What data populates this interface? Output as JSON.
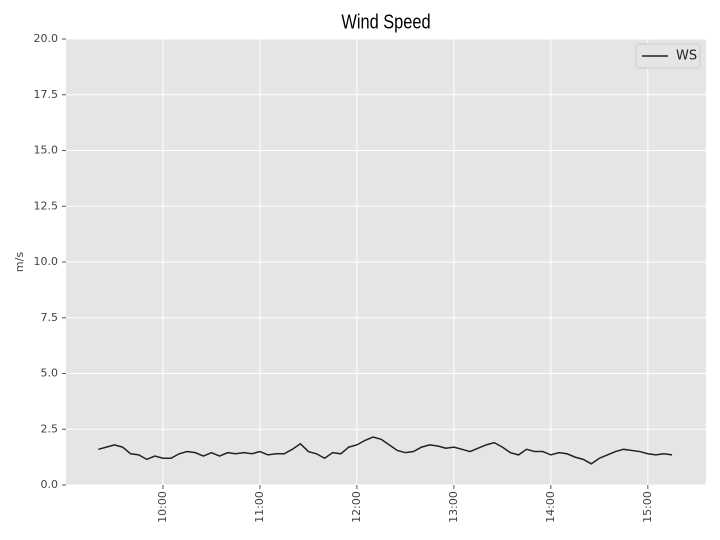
{
  "chart_data": {
    "type": "line",
    "title": "Wind Speed",
    "ylabel": "m/s",
    "x": [
      "09:20",
      "09:25",
      "09:30",
      "09:35",
      "09:40",
      "09:45",
      "09:50",
      "09:55",
      "10:00",
      "10:05",
      "10:10",
      "10:15",
      "10:20",
      "10:25",
      "10:30",
      "10:35",
      "10:40",
      "10:45",
      "10:50",
      "10:55",
      "11:00",
      "11:05",
      "11:10",
      "11:15",
      "11:20",
      "11:25",
      "11:30",
      "11:35",
      "11:40",
      "11:45",
      "11:50",
      "11:55",
      "12:00",
      "12:05",
      "12:10",
      "12:15",
      "12:20",
      "12:25",
      "12:30",
      "12:35",
      "12:40",
      "12:45",
      "12:50",
      "12:55",
      "13:00",
      "13:05",
      "13:10",
      "13:15",
      "13:20",
      "13:25",
      "13:30",
      "13:35",
      "13:40",
      "13:45",
      "13:50",
      "13:55",
      "14:00",
      "14:05",
      "14:10",
      "14:15",
      "14:20",
      "14:25",
      "14:30",
      "14:35",
      "14:40",
      "14:45",
      "14:50",
      "14:55",
      "15:00",
      "15:05",
      "15:10",
      "15:15"
    ],
    "series": [
      {
        "name": "WS",
        "color": "#222222",
        "values": [
          1.6,
          1.7,
          1.8,
          1.7,
          1.4,
          1.35,
          1.15,
          1.3,
          1.2,
          1.2,
          1.4,
          1.5,
          1.45,
          1.3,
          1.45,
          1.3,
          1.45,
          1.4,
          1.45,
          1.4,
          1.5,
          1.35,
          1.4,
          1.4,
          1.6,
          1.85,
          1.5,
          1.4,
          1.2,
          1.45,
          1.4,
          1.7,
          1.8,
          2.0,
          2.15,
          2.05,
          1.8,
          1.55,
          1.45,
          1.5,
          1.7,
          1.8,
          1.75,
          1.65,
          1.7,
          1.6,
          1.5,
          1.65,
          1.8,
          1.9,
          1.7,
          1.45,
          1.35,
          1.6,
          1.5,
          1.5,
          1.35,
          1.45,
          1.4,
          1.25,
          1.15,
          0.95,
          1.2,
          1.35,
          1.5,
          1.6,
          1.55,
          1.5,
          1.4,
          1.35,
          1.4,
          1.35
        ]
      }
    ],
    "xlim": [
      "09:00",
      "15:36"
    ],
    "xticks": [
      "10:00",
      "11:00",
      "12:00",
      "13:00",
      "14:00",
      "15:00"
    ],
    "ylim": [
      0,
      20
    ],
    "yticks": [
      {
        "value": 0,
        "label": "0.0"
      },
      {
        "value": 2.5,
        "label": "2.5"
      },
      {
        "value": 5,
        "label": "5.0"
      },
      {
        "value": 7.5,
        "label": "7.5"
      },
      {
        "value": 10,
        "label": "10.0"
      },
      {
        "value": 12.5,
        "label": "12.5"
      },
      {
        "value": 15,
        "label": "15.0"
      },
      {
        "value": 17.5,
        "label": "17.5"
      },
      {
        "value": 20,
        "label": "20.0"
      }
    ],
    "grid": true,
    "legend": "upper right"
  }
}
